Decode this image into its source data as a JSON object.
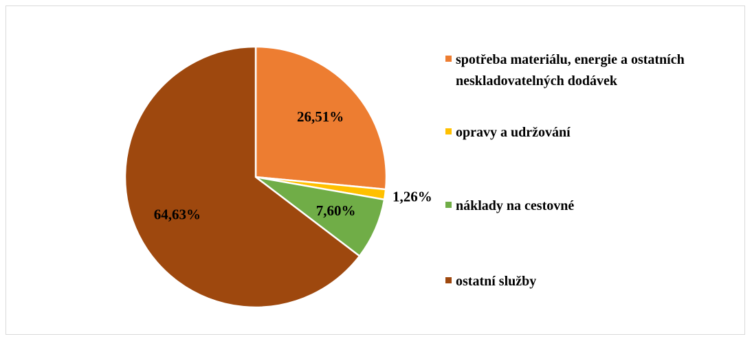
{
  "chart_data": {
    "type": "pie",
    "categories": [
      "spotřeba materiálu, energie a ostatních neskladovatelných dodávek",
      "opravy a udržování",
      "náklady na cestovné",
      "ostatní služby"
    ],
    "values": [
      26.51,
      1.26,
      7.6,
      64.63
    ],
    "value_labels": [
      "26,51%",
      "1,26%",
      "7,60%",
      "64,63%"
    ],
    "colors": [
      "#ED7D31",
      "#FFC000",
      "#70AD47",
      "#9E480E"
    ],
    "legend": "right"
  }
}
